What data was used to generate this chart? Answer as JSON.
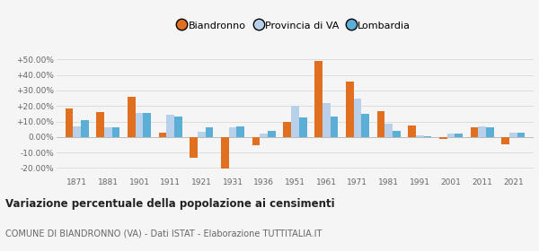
{
  "years": [
    1871,
    1881,
    1901,
    1911,
    1921,
    1931,
    1936,
    1951,
    1961,
    1971,
    1981,
    1991,
    2001,
    2011,
    2021
  ],
  "biandronno": [
    18.5,
    16.0,
    26.0,
    2.5,
    -13.5,
    -20.5,
    -5.5,
    10.0,
    49.0,
    35.5,
    16.5,
    7.5,
    -1.0,
    6.0,
    -4.5
  ],
  "provincia_va": [
    7.0,
    6.0,
    15.5,
    14.5,
    3.5,
    6.5,
    2.0,
    20.0,
    22.0,
    24.5,
    8.5,
    1.0,
    2.0,
    7.0,
    3.0
  ],
  "lombardia": [
    11.0,
    6.5,
    15.5,
    13.0,
    6.0,
    7.0,
    4.0,
    12.5,
    13.0,
    15.0,
    4.0,
    0.5,
    2.0,
    6.5,
    2.5
  ],
  "color_biandronno": "#e07020",
  "color_provincia": "#b8d0ea",
  "color_lombardia": "#5bafd6",
  "title": "Variazione percentuale della popolazione ai censimenti",
  "subtitle": "COMUNE DI BIANDRONNO (VA) - Dati ISTAT - Elaborazione TUTTITALIA.IT",
  "legend_labels": [
    "Biandronno",
    "Provincia di VA",
    "Lombardia"
  ],
  "ylim": [
    -25,
    56
  ],
  "yticks": [
    -20,
    -10,
    0,
    10,
    20,
    30,
    40,
    50
  ],
  "background_color": "#f5f5f5",
  "grid_color": "#dddddd"
}
